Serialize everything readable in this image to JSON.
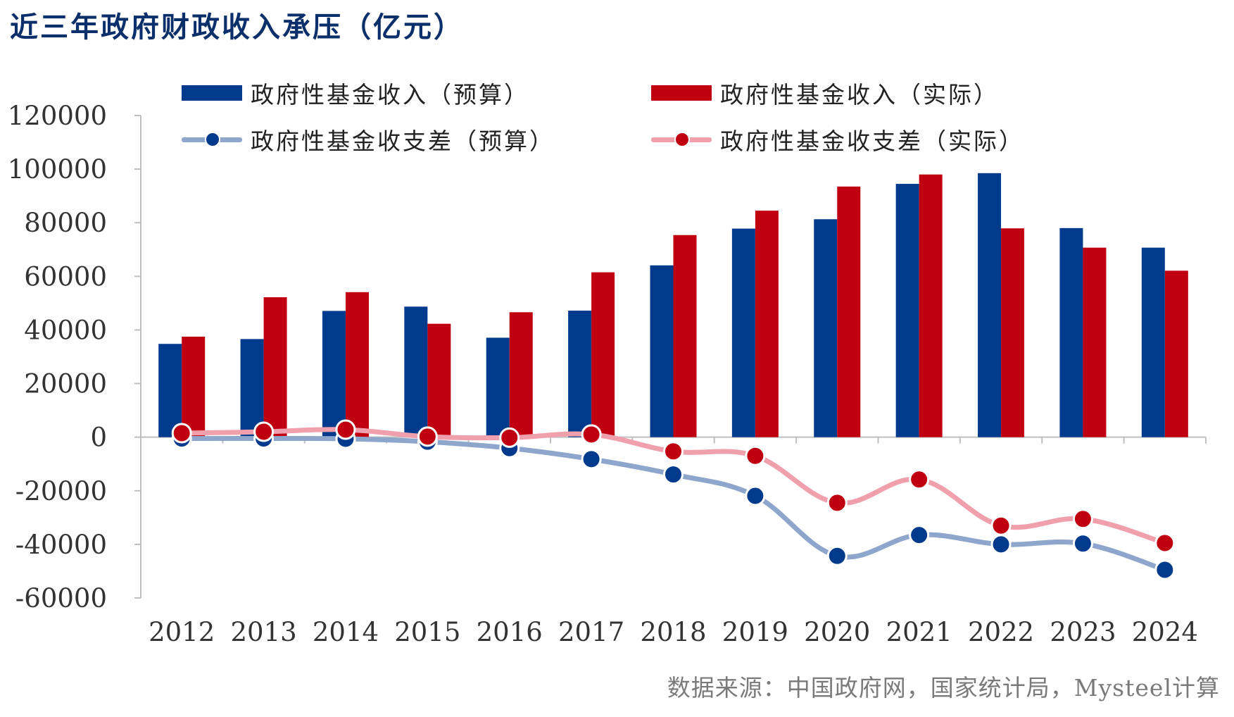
{
  "title": "近三年政府财政收入承压（亿元）",
  "source": "数据来源：中国政府网，国家统计局，Mysteel计算",
  "colors": {
    "budget_bar": "#003a8c",
    "actual_bar": "#c00010",
    "budget_line": "#8fa6cc",
    "actual_line": "#f0a0ad",
    "budget_dot": "#003a8c",
    "actual_dot": "#c00010",
    "axis": "#bfbfbf",
    "tick_text": "#333333"
  },
  "chart_data": {
    "type": "bar",
    "categories": [
      "2012",
      "2013",
      "2014",
      "2015",
      "2016",
      "2017",
      "2018",
      "2019",
      "2020",
      "2021",
      "2022",
      "2023",
      "2024"
    ],
    "ylim": [
      -60000,
      120000
    ],
    "yticks": [
      120000,
      100000,
      80000,
      60000,
      40000,
      20000,
      0,
      -20000,
      -40000,
      -60000
    ],
    "ytick_labels": [
      "120000",
      "100000",
      "80000",
      "60000",
      "40000",
      "20000",
      "0",
      "-20000",
      "-40000",
      "-60000"
    ],
    "legend_position": "top",
    "grid": false,
    "series": [
      {
        "name": "政府性基金收入（预算）",
        "kind": "bar",
        "values": [
          34800,
          36600,
          47100,
          48700,
          37100,
          47200,
          64100,
          77800,
          81300,
          94500,
          98500,
          78000,
          70700
        ]
      },
      {
        "name": "政府性基金收入（实际）",
        "kind": "bar",
        "values": [
          37500,
          52200,
          54100,
          42300,
          46600,
          61500,
          75400,
          84500,
          93500,
          98000,
          77900,
          70700,
          62100
        ]
      },
      {
        "name": "政府性基金收支差（预算）",
        "kind": "line",
        "values": [
          -500,
          -500,
          -600,
          -1700,
          -4100,
          -8200,
          -13900,
          -21900,
          -44300,
          -36500,
          -40000,
          -39700,
          -49500
        ]
      },
      {
        "name": "政府性基金收支差（实际）",
        "kind": "line",
        "values": [
          1500,
          2000,
          2800,
          200,
          -200,
          1000,
          -5300,
          -7000,
          -24500,
          -15800,
          -33000,
          -30500,
          -39500
        ]
      }
    ]
  }
}
